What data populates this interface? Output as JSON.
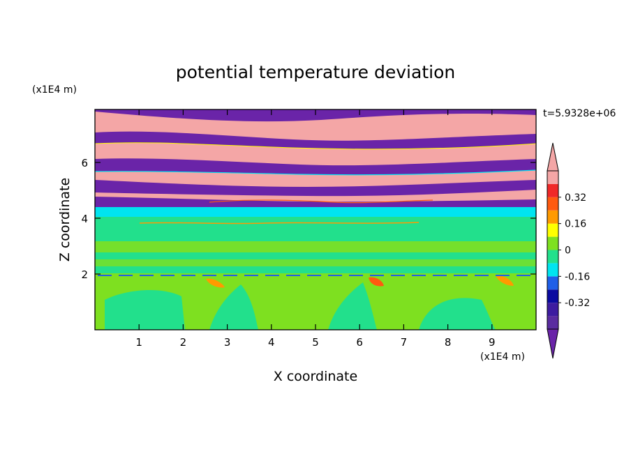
{
  "chart_data": {
    "type": "heatmap",
    "title": "potential temperature deviation",
    "xlabel": "X coordinate",
    "ylabel": "Z coordinate",
    "x_unit": "(x1E4 m)",
    "y_unit": "(x1E4 m)",
    "time_label": "t=5.9328e+06",
    "xlim": [
      0,
      10
    ],
    "ylim": [
      0,
      7.9
    ],
    "x_ticks": [
      "1",
      "2",
      "3",
      "4",
      "5",
      "6",
      "7",
      "8",
      "9"
    ],
    "y_ticks": [
      "2",
      "4",
      "6"
    ],
    "colorbar": {
      "levels": [
        -0.48,
        -0.4,
        -0.32,
        -0.24,
        -0.16,
        -0.08,
        0,
        0.08,
        0.16,
        0.24,
        0.32,
        0.4,
        0.48
      ],
      "colors": [
        "#5a2ca0",
        "#3d1ca0",
        "#0a0aa0",
        "#1f5fe8",
        "#00e4f0",
        "#22e08c",
        "#7ee020",
        "#ffff00",
        "#ff9a00",
        "#ff5a10",
        "#f02828",
        "#f4a6a6"
      ],
      "under_color": "#6a24a8",
      "over_color": "#f4a6a6",
      "tick_labels": [
        "-0.32",
        "-0.16",
        "0",
        "0.16",
        "0.32"
      ],
      "tick_values": [
        -0.32,
        -0.16,
        0,
        0.16,
        0.32
      ]
    },
    "regions": [
      {
        "z_range": [
          0,
          2.0
        ],
        "dominant": "0 to 0.08 with patches of -0.08 to 0",
        "note": "convective plumes"
      },
      {
        "z_range": [
          2.0,
          4.3
        ],
        "dominant": "-0.08 to 0 with patches of 0 to 0.08"
      },
      {
        "z_range": [
          4.3,
          4.5
        ],
        "dominant": "-0.16 to -0.08"
      },
      {
        "z_range": [
          4.5,
          7.9
        ],
        "dominant": "alternating layers above 0.4 and below -0.4"
      }
    ]
  }
}
